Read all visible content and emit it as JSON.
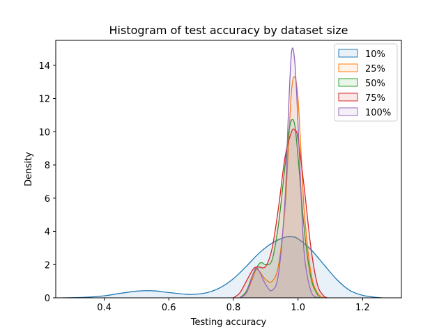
{
  "chart_data": {
    "type": "area",
    "title": "Histogram of test accuracy by dataset size",
    "xlabel": "Testing accuracy",
    "ylabel": "Density",
    "xlim": [
      0.25,
      1.32
    ],
    "ylim": [
      0,
      15.5
    ],
    "xticks": [
      0.4,
      0.6,
      0.8,
      1.0,
      1.2
    ],
    "yticks": [
      0,
      2,
      4,
      6,
      8,
      10,
      12,
      14
    ],
    "grid": false,
    "legend_position": "top-right",
    "series": [
      {
        "name": "10%",
        "color": "#1f77b4",
        "x": [
          0.27,
          0.3,
          0.35,
          0.4,
          0.45,
          0.5,
          0.53,
          0.56,
          0.6,
          0.65,
          0.68,
          0.72,
          0.76,
          0.8,
          0.84,
          0.88,
          0.92,
          0.96,
          0.98,
          1.0,
          1.04,
          1.08,
          1.12,
          1.16,
          1.2,
          1.24,
          1.26
        ],
        "y": [
          0.0,
          0.01,
          0.04,
          0.12,
          0.27,
          0.4,
          0.43,
          0.41,
          0.32,
          0.22,
          0.21,
          0.32,
          0.62,
          1.15,
          1.9,
          2.7,
          3.3,
          3.65,
          3.68,
          3.55,
          2.9,
          2.0,
          1.1,
          0.45,
          0.15,
          0.03,
          0.0
        ]
      },
      {
        "name": "25%",
        "color": "#ff7f0e",
        "x": [
          0.82,
          0.84,
          0.86,
          0.87,
          0.88,
          0.9,
          0.92,
          0.94,
          0.96,
          0.97,
          0.98,
          0.99,
          1.0,
          1.01,
          1.02,
          1.04,
          1.06,
          1.08
        ],
        "y": [
          0.0,
          0.3,
          1.2,
          1.7,
          1.6,
          1.1,
          1.0,
          2.0,
          5.5,
          9.0,
          12.5,
          13.3,
          12.0,
          8.5,
          5.0,
          1.5,
          0.3,
          0.0
        ]
      },
      {
        "name": "50%",
        "color": "#2ca02c",
        "x": [
          0.82,
          0.84,
          0.86,
          0.88,
          0.89,
          0.9,
          0.92,
          0.94,
          0.96,
          0.97,
          0.98,
          0.99,
          1.0,
          1.02,
          1.04,
          1.06,
          1.07
        ],
        "y": [
          0.0,
          0.4,
          1.4,
          2.05,
          2.1,
          2.0,
          2.3,
          4.5,
          8.0,
          9.8,
          10.7,
          10.4,
          8.5,
          4.0,
          1.2,
          0.2,
          0.0
        ]
      },
      {
        "name": "75%",
        "color": "#d62728",
        "x": [
          0.8,
          0.82,
          0.84,
          0.86,
          0.87,
          0.88,
          0.9,
          0.92,
          0.94,
          0.96,
          0.98,
          0.99,
          1.0,
          1.02,
          1.04,
          1.06,
          1.08,
          1.09
        ],
        "y": [
          0.0,
          0.3,
          1.0,
          1.7,
          1.85,
          1.85,
          1.9,
          3.0,
          5.5,
          8.5,
          10.0,
          10.1,
          9.6,
          6.5,
          3.0,
          0.8,
          0.1,
          0.0
        ]
      },
      {
        "name": "100%",
        "color": "#9467bd",
        "x": [
          0.82,
          0.84,
          0.86,
          0.87,
          0.88,
          0.9,
          0.92,
          0.94,
          0.96,
          0.97,
          0.98,
          0.99,
          1.0,
          1.01,
          1.02,
          1.04,
          1.06
        ],
        "y": [
          0.0,
          0.3,
          1.4,
          1.8,
          1.6,
          0.8,
          0.45,
          1.5,
          6.0,
          11.0,
          14.8,
          14.2,
          10.5,
          6.0,
          2.5,
          0.4,
          0.0
        ]
      }
    ]
  }
}
